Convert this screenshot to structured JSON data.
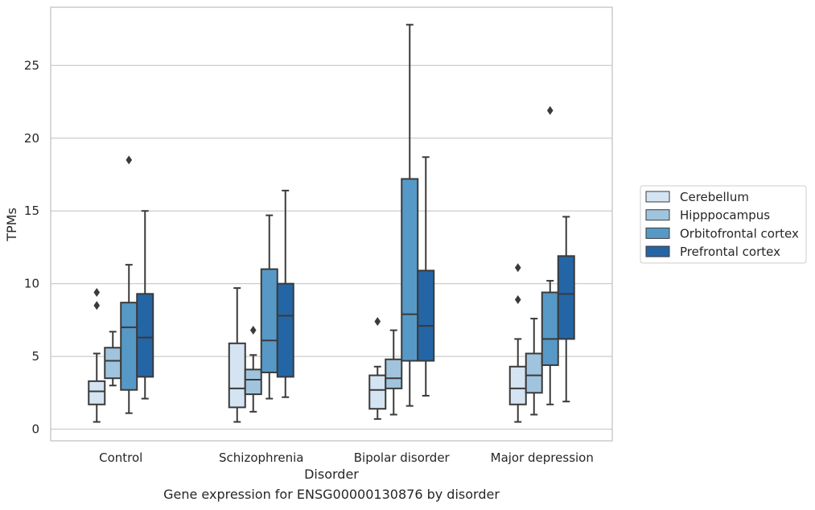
{
  "caption": "Gene expression for ENSG00000130876 by disorder",
  "chart_data": {
    "type": "box",
    "xlabel": "Disorder",
    "ylabel": "TPMs",
    "categories": [
      "Control",
      "Schizophrenia",
      "Bipolar disorder",
      "Major depression"
    ],
    "yticks": [
      0,
      5,
      10,
      15,
      20,
      25
    ],
    "ylim": [
      -0.8,
      29
    ],
    "grid": true,
    "legend_position": "right",
    "series": [
      {
        "name": "Cerebellum",
        "color": "#d4e4f2",
        "boxes": [
          {
            "whisker_low": 0.5,
            "q1": 1.7,
            "median": 2.6,
            "q3": 3.3,
            "whisker_high": 5.2,
            "outliers": [
              8.5,
              9.4
            ]
          },
          {
            "whisker_low": 0.5,
            "q1": 1.5,
            "median": 2.8,
            "q3": 5.9,
            "whisker_high": 9.7,
            "outliers": []
          },
          {
            "whisker_low": 0.7,
            "q1": 1.4,
            "median": 2.7,
            "q3": 3.7,
            "whisker_high": 4.3,
            "outliers": [
              7.4
            ]
          },
          {
            "whisker_low": 0.5,
            "q1": 1.7,
            "median": 2.8,
            "q3": 4.3,
            "whisker_high": 6.2,
            "outliers": [
              8.9,
              11.1
            ]
          }
        ]
      },
      {
        "name": "Hipppocampus",
        "color": "#a0c4dd",
        "boxes": [
          {
            "whisker_low": 3.0,
            "q1": 3.5,
            "median": 4.7,
            "q3": 5.6,
            "whisker_high": 6.7,
            "outliers": []
          },
          {
            "whisker_low": 1.2,
            "q1": 2.4,
            "median": 3.4,
            "q3": 4.1,
            "whisker_high": 5.1,
            "outliers": [
              6.8
            ]
          },
          {
            "whisker_low": 1.0,
            "q1": 2.8,
            "median": 3.5,
            "q3": 4.8,
            "whisker_high": 6.8,
            "outliers": []
          },
          {
            "whisker_low": 1.0,
            "q1": 2.5,
            "median": 3.7,
            "q3": 5.2,
            "whisker_high": 7.6,
            "outliers": []
          }
        ]
      },
      {
        "name": "Orbitofrontal cortex",
        "color": "#5799c6",
        "boxes": [
          {
            "whisker_low": 1.1,
            "q1": 2.7,
            "median": 7.0,
            "q3": 8.7,
            "whisker_high": 11.3,
            "outliers": [
              18.5
            ]
          },
          {
            "whisker_low": 2.1,
            "q1": 3.9,
            "median": 6.1,
            "q3": 11.0,
            "whisker_high": 14.7,
            "outliers": []
          },
          {
            "whisker_low": 1.6,
            "q1": 4.7,
            "median": 7.9,
            "q3": 17.2,
            "whisker_high": 27.8,
            "outliers": []
          },
          {
            "whisker_low": 1.7,
            "q1": 4.4,
            "median": 6.2,
            "q3": 9.4,
            "whisker_high": 10.2,
            "outliers": [
              21.9
            ]
          }
        ]
      },
      {
        "name": "Prefrontal cortex",
        "color": "#2466a5",
        "boxes": [
          {
            "whisker_low": 2.1,
            "q1": 3.6,
            "median": 6.3,
            "q3": 9.3,
            "whisker_high": 15.0,
            "outliers": []
          },
          {
            "whisker_low": 2.2,
            "q1": 3.6,
            "median": 7.8,
            "q3": 10.0,
            "whisker_high": 16.4,
            "outliers": []
          },
          {
            "whisker_low": 2.3,
            "q1": 4.7,
            "median": 7.1,
            "q3": 10.9,
            "whisker_high": 18.7,
            "outliers": []
          },
          {
            "whisker_low": 1.9,
            "q1": 6.2,
            "median": 9.3,
            "q3": 11.9,
            "whisker_high": 14.6,
            "outliers": []
          }
        ]
      }
    ]
  }
}
